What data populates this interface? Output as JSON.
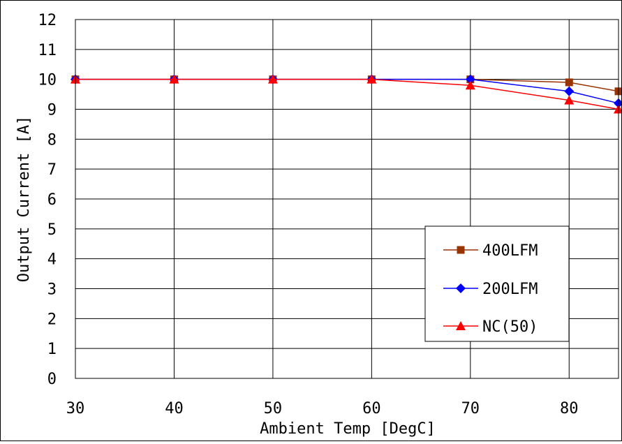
{
  "chart_data": {
    "type": "line",
    "xlabel": "Ambient Temp [DegC]",
    "ylabel": "Output Current [A]",
    "xlim": [
      30,
      85
    ],
    "ylim": [
      0,
      12
    ],
    "xticks": [
      30,
      40,
      50,
      60,
      70,
      80
    ],
    "yticks": [
      0,
      1,
      2,
      3,
      4,
      5,
      6,
      7,
      8,
      9,
      10,
      11,
      12
    ],
    "grid": true,
    "legend_position": "bottom-right",
    "series": [
      {
        "name": "400LFM",
        "color": "#993300",
        "marker": "square",
        "x": [
          30,
          40,
          50,
          60,
          70,
          80,
          85
        ],
        "y": [
          10,
          10,
          10,
          10,
          10,
          9.9,
          9.6
        ]
      },
      {
        "name": "200LFM",
        "color": "#0000ff",
        "marker": "diamond",
        "x": [
          30,
          40,
          50,
          60,
          70,
          80,
          85
        ],
        "y": [
          10,
          10,
          10,
          10,
          10,
          9.6,
          9.2
        ]
      },
      {
        "name": "NC(50)",
        "color": "#ff0000",
        "marker": "triangle",
        "x": [
          30,
          40,
          50,
          60,
          70,
          80,
          85
        ],
        "y": [
          10,
          10,
          10,
          10,
          9.8,
          9.3,
          9.0
        ]
      }
    ]
  }
}
